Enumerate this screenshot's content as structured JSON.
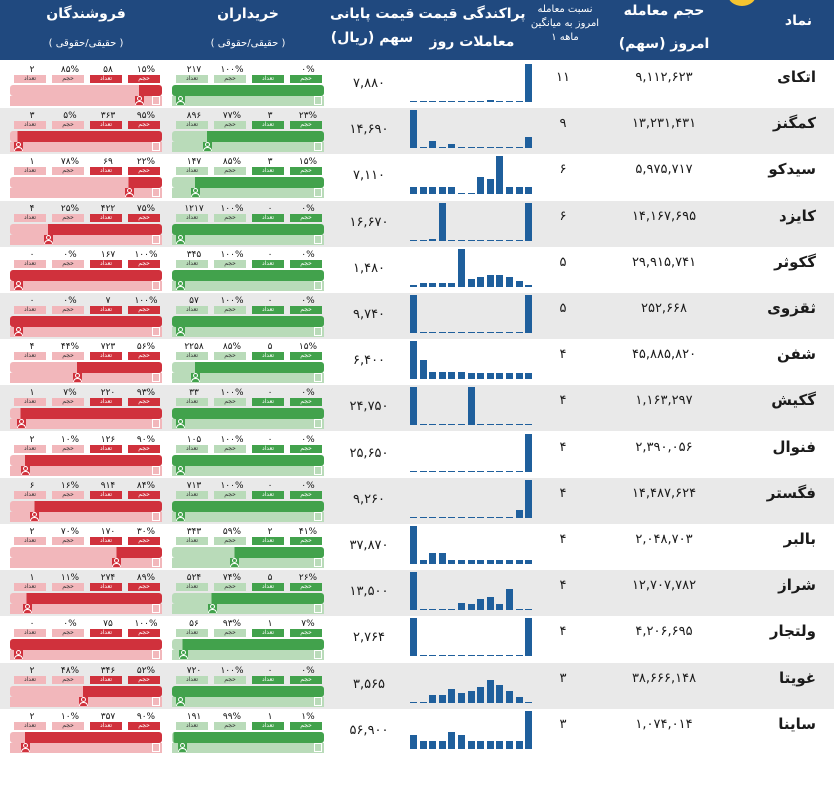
{
  "header": {
    "col_symbol": "نماد",
    "col_volume_1": "حجم معامله",
    "col_volume_2": "امروز (سهم)",
    "col_ratio_1": "نسبت معامله",
    "col_ratio_2": "امروز به میانگین",
    "col_ratio_3": "۱ ماهه",
    "col_dispersion_1": "پراکندگی قیمت",
    "col_dispersion_2": "معاملات روز",
    "col_price_1": "قیمت پایانی",
    "col_price_2": "سهم (ریال)",
    "col_buyers": "خریداران",
    "col_buyers_sub": "( حقیقی/حقوقی )",
    "col_sellers": "فروشندگان",
    "col_sellers_sub": "( حقیقی/حقوقی )"
  },
  "tag_labels": {
    "count": "تعداد",
    "volume": "حجم"
  },
  "colors": {
    "header_bg": "#20497f",
    "hist_bar": "#1f5f9c",
    "buy_dark": "#42a24c",
    "buy_light": "#b9dbb9",
    "sell_dark": "#d0313c",
    "sell_light": "#f2b7bb",
    "row_shade": "#e9e9e9",
    "logo": "#f5c430"
  },
  "icons": [
    "person-icon",
    "building-icon"
  ],
  "rows": [
    {
      "symbol": "اتکای",
      "volume": "۹,۱۱۲,۶۲۳",
      "ratio": "۱۱",
      "price": "۷,۸۸۰",
      "hist": [
        0,
        0,
        0,
        0,
        0,
        0,
        0,
        0,
        0.05,
        0,
        0,
        0,
        1
      ],
      "sell": {
        "vals": [
          "۱۵%",
          "۵۸",
          "۸۵%",
          "۲"
        ],
        "real_share": 0.15
      },
      "buy": {
        "vals": [
          "۰%",
          "",
          "۱۰۰%",
          "۲۱۷"
        ],
        "real_share": 1
      }
    },
    {
      "symbol": "کمگنز",
      "volume": "۱۳,۲۳۱,۴۳۱",
      "ratio": "۹",
      "price": "۱۴,۶۹۰",
      "hist": [
        1,
        0,
        0.2,
        0,
        0.1,
        0,
        0,
        0,
        0,
        0,
        0,
        0,
        0.3
      ],
      "sell": {
        "vals": [
          "۹۵%",
          "۳۶۳",
          "۵%",
          "۳"
        ],
        "real_share": 0.95
      },
      "buy": {
        "vals": [
          "۲۳%",
          "۳",
          "۷۷%",
          "۸۹۶"
        ],
        "real_share": 0.77
      }
    },
    {
      "symbol": "سیدکو",
      "volume": "۵,۹۷۵,۷۱۷",
      "ratio": "۶",
      "price": "۷,۱۱۰",
      "hist": [
        0.2,
        0.2,
        0.2,
        0.2,
        0.2,
        0,
        0,
        0.45,
        0.4,
        1,
        0.2,
        0.2,
        0.2
      ],
      "sell": {
        "vals": [
          "۲۲%",
          "۶۹",
          "۷۸%",
          "۱"
        ],
        "real_share": 0.22
      },
      "buy": {
        "vals": [
          "۱۵%",
          "۳",
          "۸۵%",
          "۱۴۷"
        ],
        "real_share": 0.85
      }
    },
    {
      "symbol": "کایزد",
      "volume": "۱۴,۱۶۷,۶۹۵",
      "ratio": "۶",
      "price": "۱۶,۶۷۰",
      "hist": [
        0,
        0,
        0.05,
        1,
        0,
        0,
        0,
        0,
        0,
        0,
        0,
        0,
        1
      ],
      "sell": {
        "vals": [
          "۷۵%",
          "۴۲۲",
          "۲۵%",
          "۴"
        ],
        "real_share": 0.75
      },
      "buy": {
        "vals": [
          "۰%",
          "۰",
          "۱۰۰%",
          "۱۲۱۷"
        ],
        "real_share": 1
      }
    },
    {
      "symbol": "گکوثر",
      "volume": "۲۹,۹۱۵,۷۴۱",
      "ratio": "۵",
      "price": "۱,۴۸۰",
      "hist": [
        0.05,
        0.1,
        0.1,
        0.1,
        0.1,
        1,
        0.2,
        0.25,
        0.3,
        0.3,
        0.25,
        0.15,
        0.05
      ],
      "sell": {
        "vals": [
          "۱۰۰%",
          "۱۶۷",
          "۰%",
          "۰"
        ],
        "real_share": 1
      },
      "buy": {
        "vals": [
          "۰%",
          "۰",
          "۱۰۰%",
          "۳۴۵"
        ],
        "real_share": 1
      }
    },
    {
      "symbol": "ثقزوی",
      "volume": "۲۵۲,۶۶۸",
      "ratio": "۵",
      "price": "۹,۷۴۰",
      "hist": [
        1,
        0,
        0,
        0,
        0,
        0,
        0,
        0,
        0,
        0,
        0,
        0,
        1
      ],
      "sell": {
        "vals": [
          "۱۰۰%",
          "۷",
          "۰%",
          "۰"
        ],
        "real_share": 1
      },
      "buy": {
        "vals": [
          "۰%",
          "۰",
          "۱۰۰%",
          "۵۷"
        ],
        "real_share": 1
      }
    },
    {
      "symbol": "شفن",
      "volume": "۴۵,۸۸۵,۸۲۰",
      "ratio": "۴",
      "price": "۶,۴۰۰",
      "hist": [
        1,
        0.5,
        0.2,
        0.2,
        0.2,
        0.2,
        0.15,
        0.15,
        0.15,
        0.15,
        0.15,
        0.15,
        0.15
      ],
      "sell": {
        "vals": [
          "۵۶%",
          "۷۲۳",
          "۴۴%",
          "۴"
        ],
        "real_share": 0.56
      },
      "buy": {
        "vals": [
          "۱۵%",
          "۵",
          "۸۵%",
          "۲۲۵۸"
        ],
        "real_share": 0.85
      }
    },
    {
      "symbol": "گکیش",
      "volume": "۱,۱۶۳,۲۹۷",
      "ratio": "۴",
      "price": "۲۴,۷۵۰",
      "hist": [
        1,
        0,
        0,
        0,
        0,
        0,
        1,
        0,
        0,
        0,
        0,
        0,
        0
      ],
      "sell": {
        "vals": [
          "۹۳%",
          "۲۲۰",
          "۷%",
          "۱"
        ],
        "real_share": 0.93
      },
      "buy": {
        "vals": [
          "۰%",
          "۰",
          "۱۰۰%",
          "۳۳"
        ],
        "real_share": 1
      }
    },
    {
      "symbol": "فنوال",
      "volume": "۲,۳۹۰,۰۵۶",
      "ratio": "۴",
      "price": "۲۵,۶۵۰",
      "hist": [
        0,
        0,
        0,
        0,
        0,
        0,
        0,
        0,
        0,
        0,
        0,
        0,
        1
      ],
      "sell": {
        "vals": [
          "۹۰%",
          "۱۲۶",
          "۱۰%",
          "۲"
        ],
        "real_share": 0.9
      },
      "buy": {
        "vals": [
          "۰%",
          "۰",
          "۱۰۰%",
          "۱۰۵"
        ],
        "real_share": 1
      }
    },
    {
      "symbol": "فگستر",
      "volume": "۱۴,۴۸۷,۶۲۴",
      "ratio": "۴",
      "price": "۹,۲۶۰",
      "hist": [
        0,
        0,
        0,
        0,
        0,
        0,
        0,
        0,
        0,
        0,
        0,
        0.2,
        1
      ],
      "sell": {
        "vals": [
          "۸۴%",
          "۹۱۴",
          "۱۶%",
          "۶"
        ],
        "real_share": 0.84
      },
      "buy": {
        "vals": [
          "۰%",
          "۰",
          "۱۰۰%",
          "۷۱۳"
        ],
        "real_share": 1
      }
    },
    {
      "symbol": "بالبر",
      "volume": "۲,۰۴۸,۷۰۳",
      "ratio": "۴",
      "price": "۳۷,۸۷۰",
      "hist": [
        1,
        0.1,
        0.3,
        0.3,
        0.1,
        0.1,
        0.1,
        0.1,
        0.1,
        0.1,
        0.1,
        0.1,
        0.1
      ],
      "sell": {
        "vals": [
          "۳۰%",
          "۱۷۰",
          "۷۰%",
          "۲"
        ],
        "real_share": 0.3
      },
      "buy": {
        "vals": [
          "۴۱%",
          "۲",
          "۵۹%",
          "۳۴۳"
        ],
        "real_share": 0.59
      }
    },
    {
      "symbol": "شراز",
      "volume": "۱۲,۷۰۷,۷۸۲",
      "ratio": "۴",
      "price": "۱۳,۵۰۰",
      "hist": [
        1,
        0,
        0,
        0,
        0,
        0.2,
        0.15,
        0.3,
        0.35,
        0.15,
        0.55,
        0,
        0
      ],
      "sell": {
        "vals": [
          "۸۹%",
          "۲۷۴",
          "۱۱%",
          "۱"
        ],
        "real_share": 0.89
      },
      "buy": {
        "vals": [
          "۲۶%",
          "۵",
          "۷۴%",
          "۵۲۴"
        ],
        "real_share": 0.74
      }
    },
    {
      "symbol": "ولتجار",
      "volume": "۴,۲۰۶,۶۹۵",
      "ratio": "۴",
      "price": "۲,۷۶۴",
      "hist": [
        1,
        0,
        0,
        0,
        0,
        0,
        0,
        0,
        0,
        0,
        0,
        0,
        1
      ],
      "sell": {
        "vals": [
          "۱۰۰%",
          "۷۵",
          "۰%",
          "۰"
        ],
        "real_share": 1
      },
      "buy": {
        "vals": [
          "۷%",
          "۱",
          "۹۳%",
          "۵۶"
        ],
        "real_share": 0.93
      }
    },
    {
      "symbol": "غویتا",
      "volume": "۳۸,۶۶۶,۱۴۸",
      "ratio": "۳",
      "price": "۳,۵۶۵",
      "hist": [
        0,
        0,
        0.2,
        0.2,
        0.35,
        0.25,
        0.3,
        0.4,
        0.6,
        0.45,
        0.3,
        0.15,
        0
      ],
      "sell": {
        "vals": [
          "۵۲%",
          "۳۴۶",
          "۴۸%",
          "۲"
        ],
        "real_share": 0.52
      },
      "buy": {
        "vals": [
          "۰%",
          "۰",
          "۱۰۰%",
          "۷۲۰"
        ],
        "real_share": 1
      }
    },
    {
      "symbol": "ساینا",
      "volume": "۱,۰۷۴,۰۱۴",
      "ratio": "۳",
      "price": "۵۶,۹۰۰",
      "hist": [
        0.35,
        0.2,
        0.2,
        0.2,
        0.45,
        0.35,
        0.2,
        0.2,
        0.2,
        0.2,
        0.2,
        0.2,
        1
      ],
      "sell": {
        "vals": [
          "۹۰%",
          "۳۵۷",
          "۱۰%",
          "۲"
        ],
        "real_share": 0.9
      },
      "buy": {
        "vals": [
          "۱%",
          "۱",
          "۹۹%",
          "۱۹۱"
        ],
        "real_share": 0.99
      }
    }
  ]
}
